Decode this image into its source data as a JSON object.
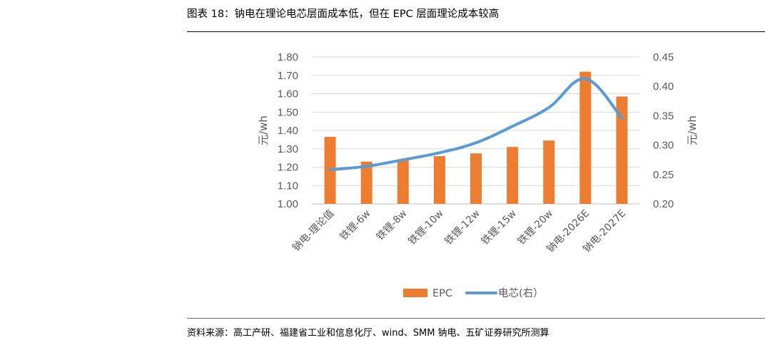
{
  "title": "图表 18：钠电在理论电芯层面成本低，但在 EPC 层面理论成本较高",
  "source": "资料来源：高工产研、福建省工业和信息化厅、wind、SMM 钠电、五矿证券研究所测算",
  "chart_data": {
    "type": "bar+line",
    "categories": [
      "钠电-理论值",
      "铁锂-6w",
      "铁锂-8w",
      "铁锂-10w",
      "铁锂-12w",
      "铁锂-15w",
      "铁锂-20w",
      "钠电-2026E",
      "钠电-2027E"
    ],
    "series": [
      {
        "name": "EPC",
        "type": "bar",
        "axis": "left",
        "color": "#ED7D31",
        "values": [
          1.365,
          1.23,
          1.24,
          1.26,
          1.275,
          1.31,
          1.345,
          1.72,
          1.585
        ]
      },
      {
        "name": "电芯(右）",
        "type": "line",
        "axis": "right",
        "color": "#5B9BD5",
        "values": [
          0.258,
          0.264,
          0.275,
          0.287,
          0.304,
          0.332,
          0.364,
          0.413,
          0.346
        ]
      }
    ],
    "y_left": {
      "label": "元/wh",
      "min": 1.0,
      "max": 1.8,
      "step": 0.1,
      "ticks": [
        "1.00",
        "1.10",
        "1.20",
        "1.30",
        "1.40",
        "1.50",
        "1.60",
        "1.70",
        "1.80"
      ]
    },
    "y_right": {
      "label": "元/wh",
      "min": 0.2,
      "max": 0.45,
      "step": 0.05,
      "ticks": [
        "0.20",
        "0.25",
        "0.30",
        "0.35",
        "0.40",
        "0.45"
      ]
    },
    "grid": true,
    "legend": "bottom"
  }
}
